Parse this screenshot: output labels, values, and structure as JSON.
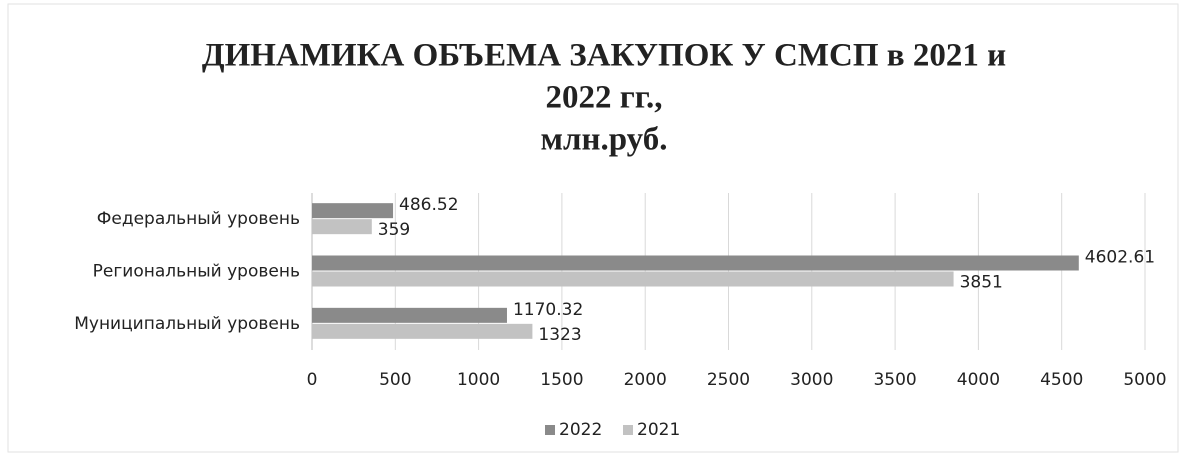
{
  "chart_data": {
    "type": "bar",
    "orientation": "horizontal",
    "title": [
      "ДИНАМИКА ОБЪЕМА ЗАКУПОК У СМСП в 2021 и",
      "2022 гг.,",
      "млн.руб."
    ],
    "categories": [
      "Федеральный уровень",
      "Региональный уровень",
      "Муниципальный уровень"
    ],
    "series": [
      {
        "name": "2022",
        "color": "#8a8a8a",
        "values": [
          486.52,
          4602.61,
          1170.32
        ]
      },
      {
        "name": "2021",
        "color": "#c2c2c2",
        "values": [
          359,
          3851,
          1323
        ]
      }
    ],
    "xlim": [
      0,
      5000
    ],
    "xticks": [
      0,
      500,
      1000,
      1500,
      2000,
      2500,
      3000,
      3500,
      4000,
      4500,
      5000
    ],
    "grid": true,
    "legend": "bottom"
  }
}
